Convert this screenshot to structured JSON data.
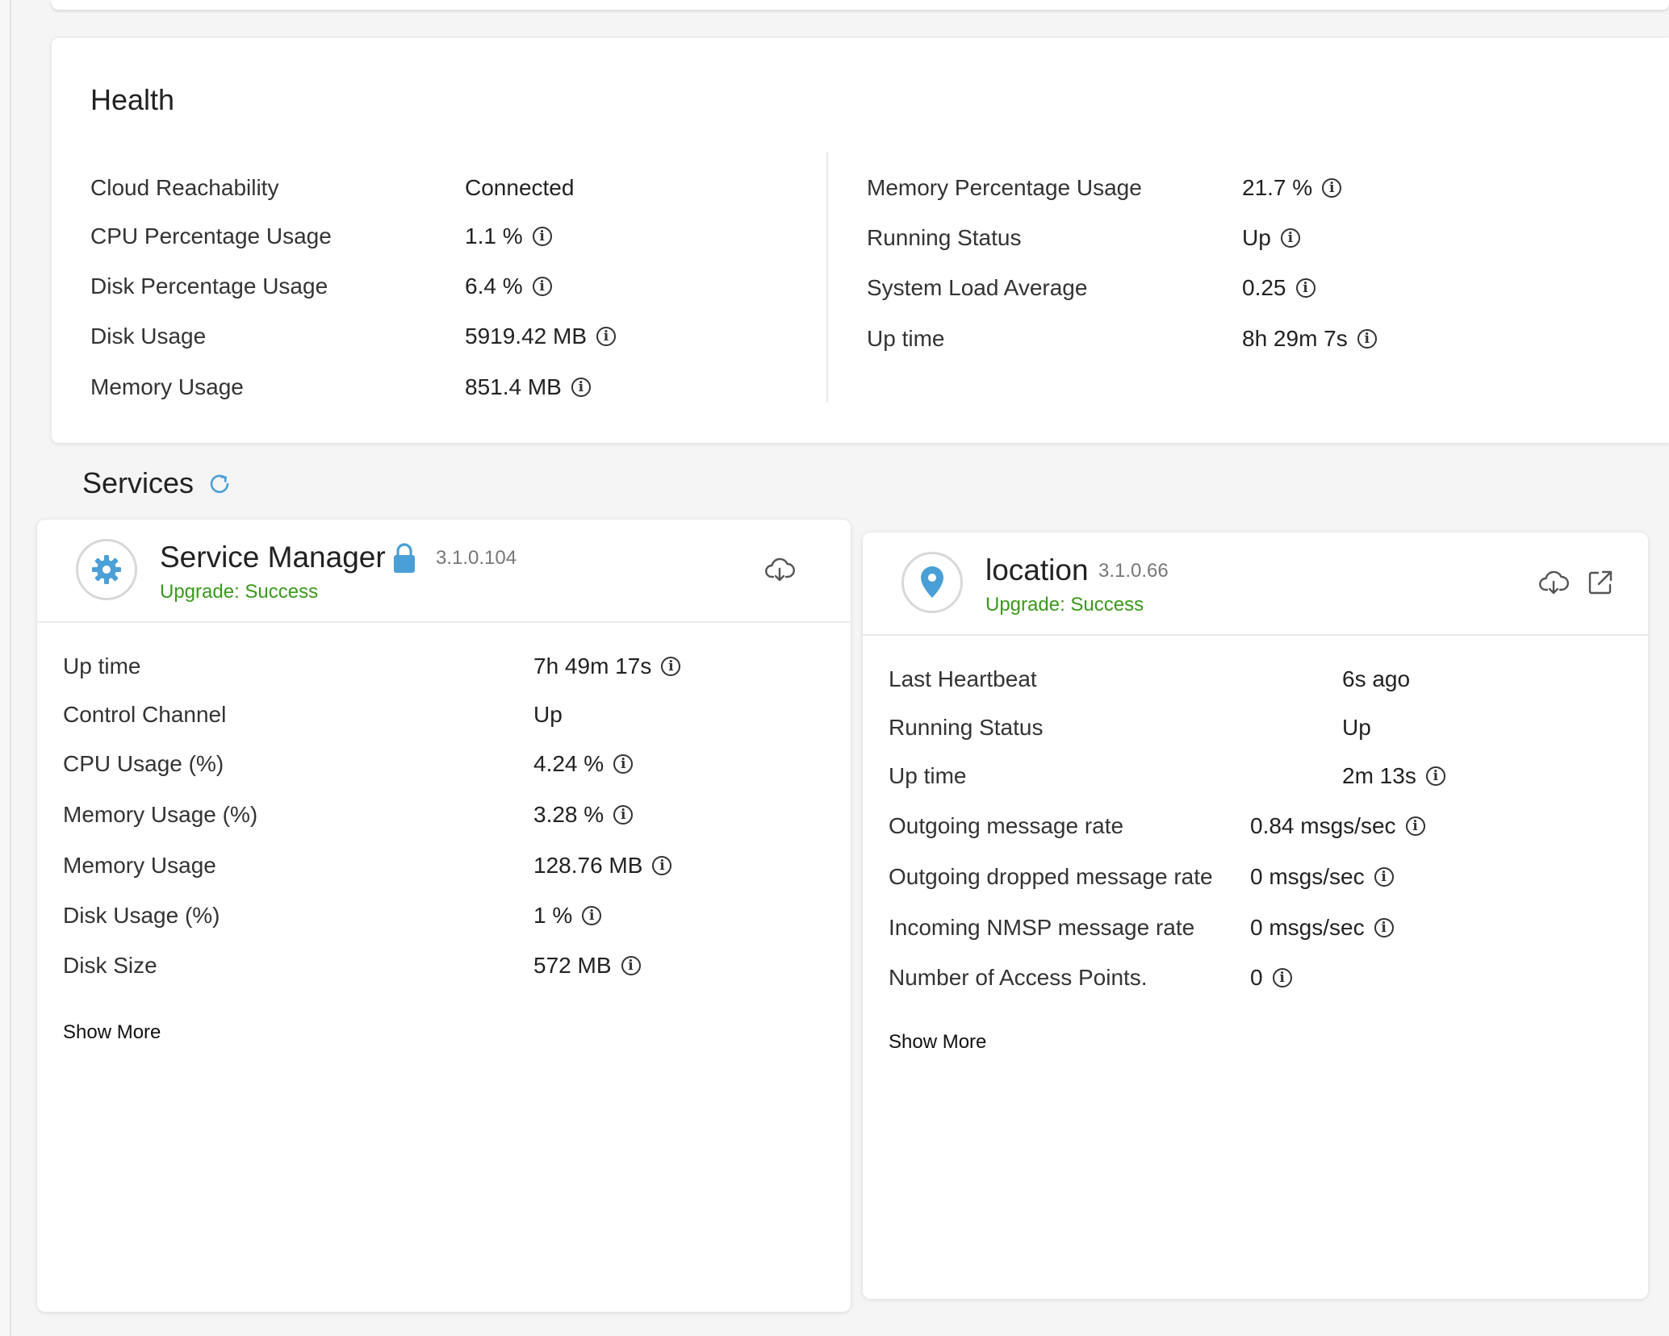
{
  "health": {
    "title": "Health",
    "left": [
      {
        "label": "Cloud Reachability",
        "value": "Connected",
        "info": false
      },
      {
        "label": "CPU Percentage Usage",
        "value": "1.1 %",
        "info": true
      },
      {
        "label": "Disk Percentage Usage",
        "value": "6.4 %",
        "info": true
      },
      {
        "label": "Disk Usage",
        "value": "5919.42 MB",
        "info": true
      },
      {
        "label": "Memory Usage",
        "value": "851.4 MB",
        "info": true
      }
    ],
    "right": [
      {
        "label": "Memory Percentage Usage",
        "value": "21.7 %",
        "info": true
      },
      {
        "label": "Running Status",
        "value": "Up",
        "info": true
      },
      {
        "label": "System Load Average",
        "value": "0.25",
        "info": true
      },
      {
        "label": "Up time",
        "value": "8h 29m 7s",
        "info": true
      }
    ]
  },
  "services": {
    "title": "Services",
    "refresh_icon": "refresh-icon",
    "cards": [
      {
        "name": "Service Manager",
        "icon": "gear-icon",
        "lock_icon": "lock-icon",
        "version": "3.1.0.104",
        "status": "Upgrade: Success",
        "rows": [
          {
            "label": "Up time",
            "value": "7h 49m 17s",
            "info": true
          },
          {
            "label": "Control Channel",
            "value": "Up",
            "info": false
          },
          {
            "label": "CPU Usage (%)",
            "value": "4.24 %",
            "info": true
          },
          {
            "label": "Memory Usage (%)",
            "value": "3.28 %",
            "info": true
          },
          {
            "label": "Memory Usage",
            "value": "128.76 MB",
            "info": true
          },
          {
            "label": "Disk Usage (%)",
            "value": "1 %",
            "info": true
          },
          {
            "label": "Disk Size",
            "value": "572 MB",
            "info": true
          }
        ],
        "show_more": "Show More"
      },
      {
        "name": "location",
        "icon": "location-pin-icon",
        "version": "3.1.0.66",
        "status": "Upgrade: Success",
        "rows": [
          {
            "label": "Last Heartbeat",
            "value": "6s ago",
            "info": false
          },
          {
            "label": "Running Status",
            "value": "Up",
            "info": false
          },
          {
            "label": "Up time",
            "value": "2m 13s",
            "info": true
          },
          {
            "label": "Outgoing message rate",
            "value": "0.84 msgs/sec",
            "info": true
          },
          {
            "label": "Outgoing dropped message rate",
            "value": "0 msgs/sec",
            "info": true
          },
          {
            "label": "Incoming NMSP message rate",
            "value": "0 msgs/sec",
            "info": true
          },
          {
            "label": "Number of Access Points.",
            "value": "0",
            "info": true
          }
        ],
        "show_more": "Show More"
      }
    ]
  },
  "colors": {
    "accent_blue": "#4a9fd6",
    "success_green": "#3a9a1a"
  }
}
